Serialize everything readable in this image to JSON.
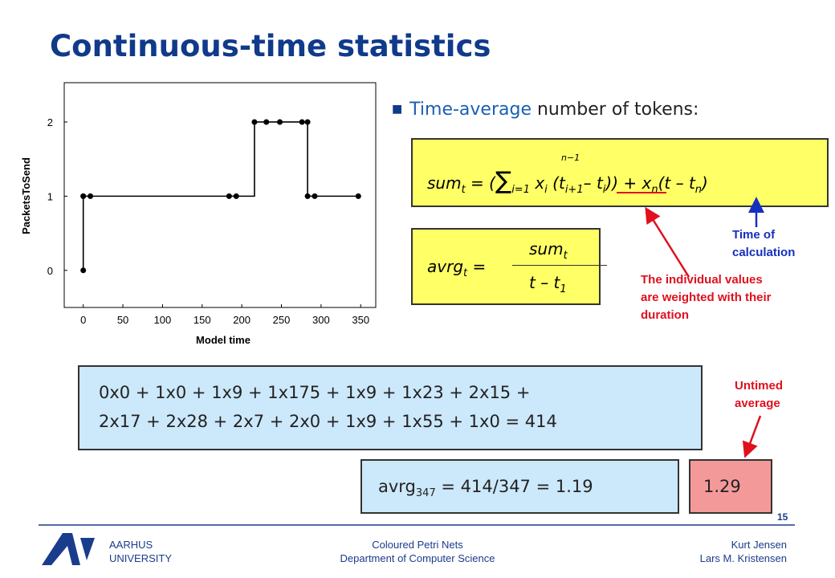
{
  "title": "Continuous-time statistics",
  "bullet": [
    "Time-average",
    " number of tokens:"
  ],
  "sum_formula": [
    "sum",
    "t",
    " = (",
    "∑",
    "n−1",
    "i=1",
    " x",
    "i",
    " (t",
    "i+1",
    "– t",
    "i",
    ")) + x",
    "n",
    "(t – t",
    "n",
    ")"
  ],
  "avrg_formula": {
    "lhs": [
      "avrg",
      "t",
      " ="
    ],
    "numerator": [
      "sum",
      "t"
    ],
    "denominator": [
      "t – t",
      "1"
    ]
  },
  "annotations": {
    "time_of_calculation": [
      "Time of",
      "calculation"
    ],
    "weighted": [
      "The individual values",
      "are weighted with their",
      "duration"
    ],
    "untimed": [
      "Untimed",
      "average"
    ]
  },
  "calculation": [
    "0x0 + 1x0 + 1x9 + 1x175 + 1x9 + 1x23 + 2x15 +",
    "2x17 + 2x28 + 2x7 + 2x0 + 1x9 + 1x55 + 1x0 = 414"
  ],
  "time_average": [
    "avrg",
    "347",
    " = 414/347 = 1.19"
  ],
  "untimed_value": "1.29",
  "page_number": "15",
  "footer": {
    "logo": [
      "AARHUS",
      "UNIVERSITY"
    ],
    "center": [
      "Coloured Petri Nets",
      "Department of Computer Science"
    ],
    "right": [
      "Kurt Jensen",
      "Lars M. Kristensen"
    ]
  },
  "chart_data": {
    "type": "line",
    "step": true,
    "x_label": "Model time",
    "y_label": "PacketsToSend",
    "x": [
      0,
      0,
      0,
      9,
      184,
      193,
      216,
      231,
      248,
      276,
      283,
      283,
      292,
      347
    ],
    "series": [
      {
        "name": "PacketsToSend",
        "color": "#000000",
        "values": [
          0,
          1,
          1,
          1,
          1,
          1,
          2,
          2,
          2,
          2,
          2,
          1,
          1,
          1
        ]
      }
    ],
    "xlim": [
      -24,
      369
    ],
    "xticks": [
      0,
      50,
      100,
      150,
      200,
      250,
      300,
      350
    ],
    "ylim": [
      -0.5,
      2.53
    ],
    "yticks": [
      0,
      1,
      2
    ]
  }
}
